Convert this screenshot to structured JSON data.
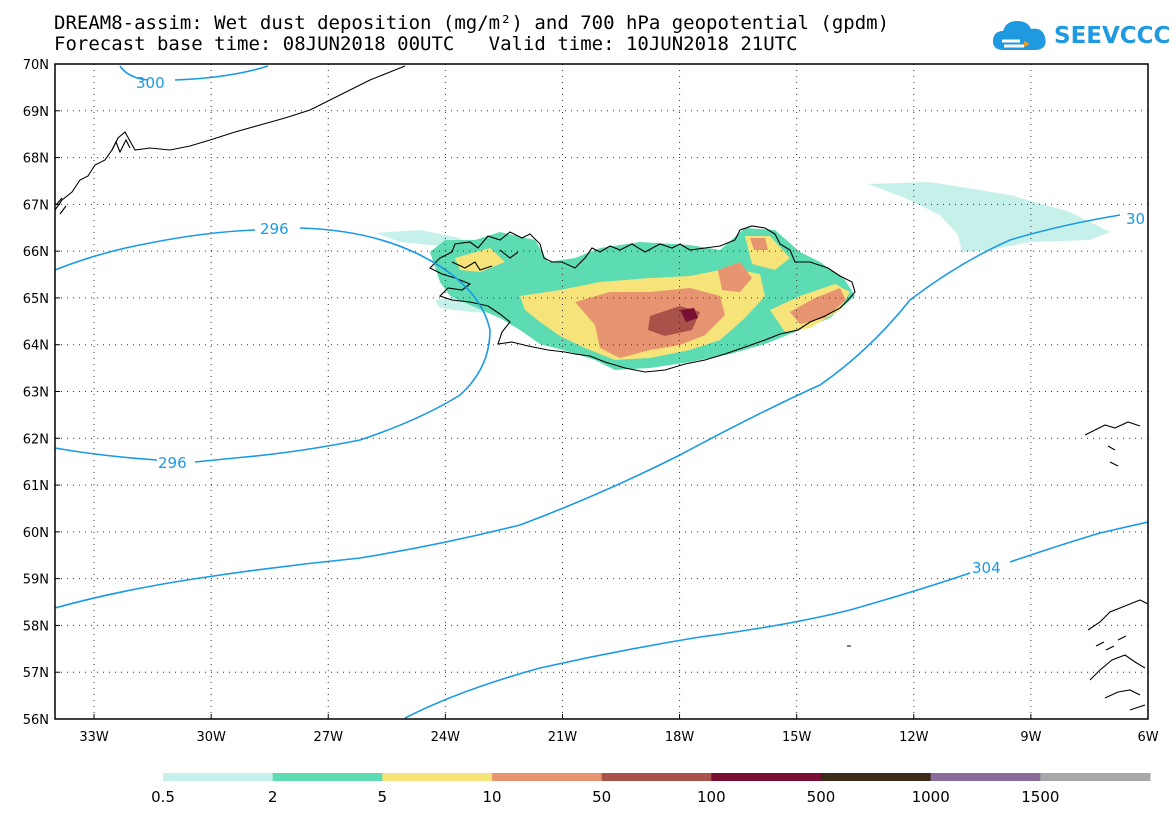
{
  "title": {
    "line1": "DREAM8-assim: Wet dust deposition (mg/m²) and 700 hPa geopotential (gpdm)",
    "line2": "Forecast base time: 08JUN2018 00UTC   Valid time: 10JUN2018 21UTC"
  },
  "brand": {
    "name": "SEEVCCC",
    "icon": "cloud-logo-icon",
    "color": "#1f9ae0"
  },
  "map": {
    "lat_range": [
      56,
      70
    ],
    "lon_range": [
      -34,
      -6
    ],
    "lat_labels": [
      "70N",
      "69N",
      "68N",
      "67N",
      "66N",
      "65N",
      "64N",
      "63N",
      "62N",
      "61N",
      "60N",
      "59N",
      "58N",
      "57N",
      "56N"
    ],
    "lon_labels": [
      "33W",
      "30W",
      "27W",
      "24W",
      "21W",
      "18W",
      "15W",
      "12W",
      "9W",
      "6W"
    ],
    "grid": "dotted",
    "contour_color": "#1a9ae6",
    "contour_labels": [
      "300",
      "296",
      "296",
      "30",
      "304"
    ],
    "coastline_color": "#000000"
  },
  "legend": {
    "colors": [
      "#c6f0ea",
      "#5ddbb2",
      "#f6e37a",
      "#e79571",
      "#a8524a",
      "#7a0f34",
      "#3d2b1a",
      "#8a6c9a",
      "#a8a8a8"
    ],
    "labels": [
      "0.5",
      "2",
      "5",
      "10",
      "50",
      "100",
      "500",
      "1000",
      "1500"
    ]
  }
}
